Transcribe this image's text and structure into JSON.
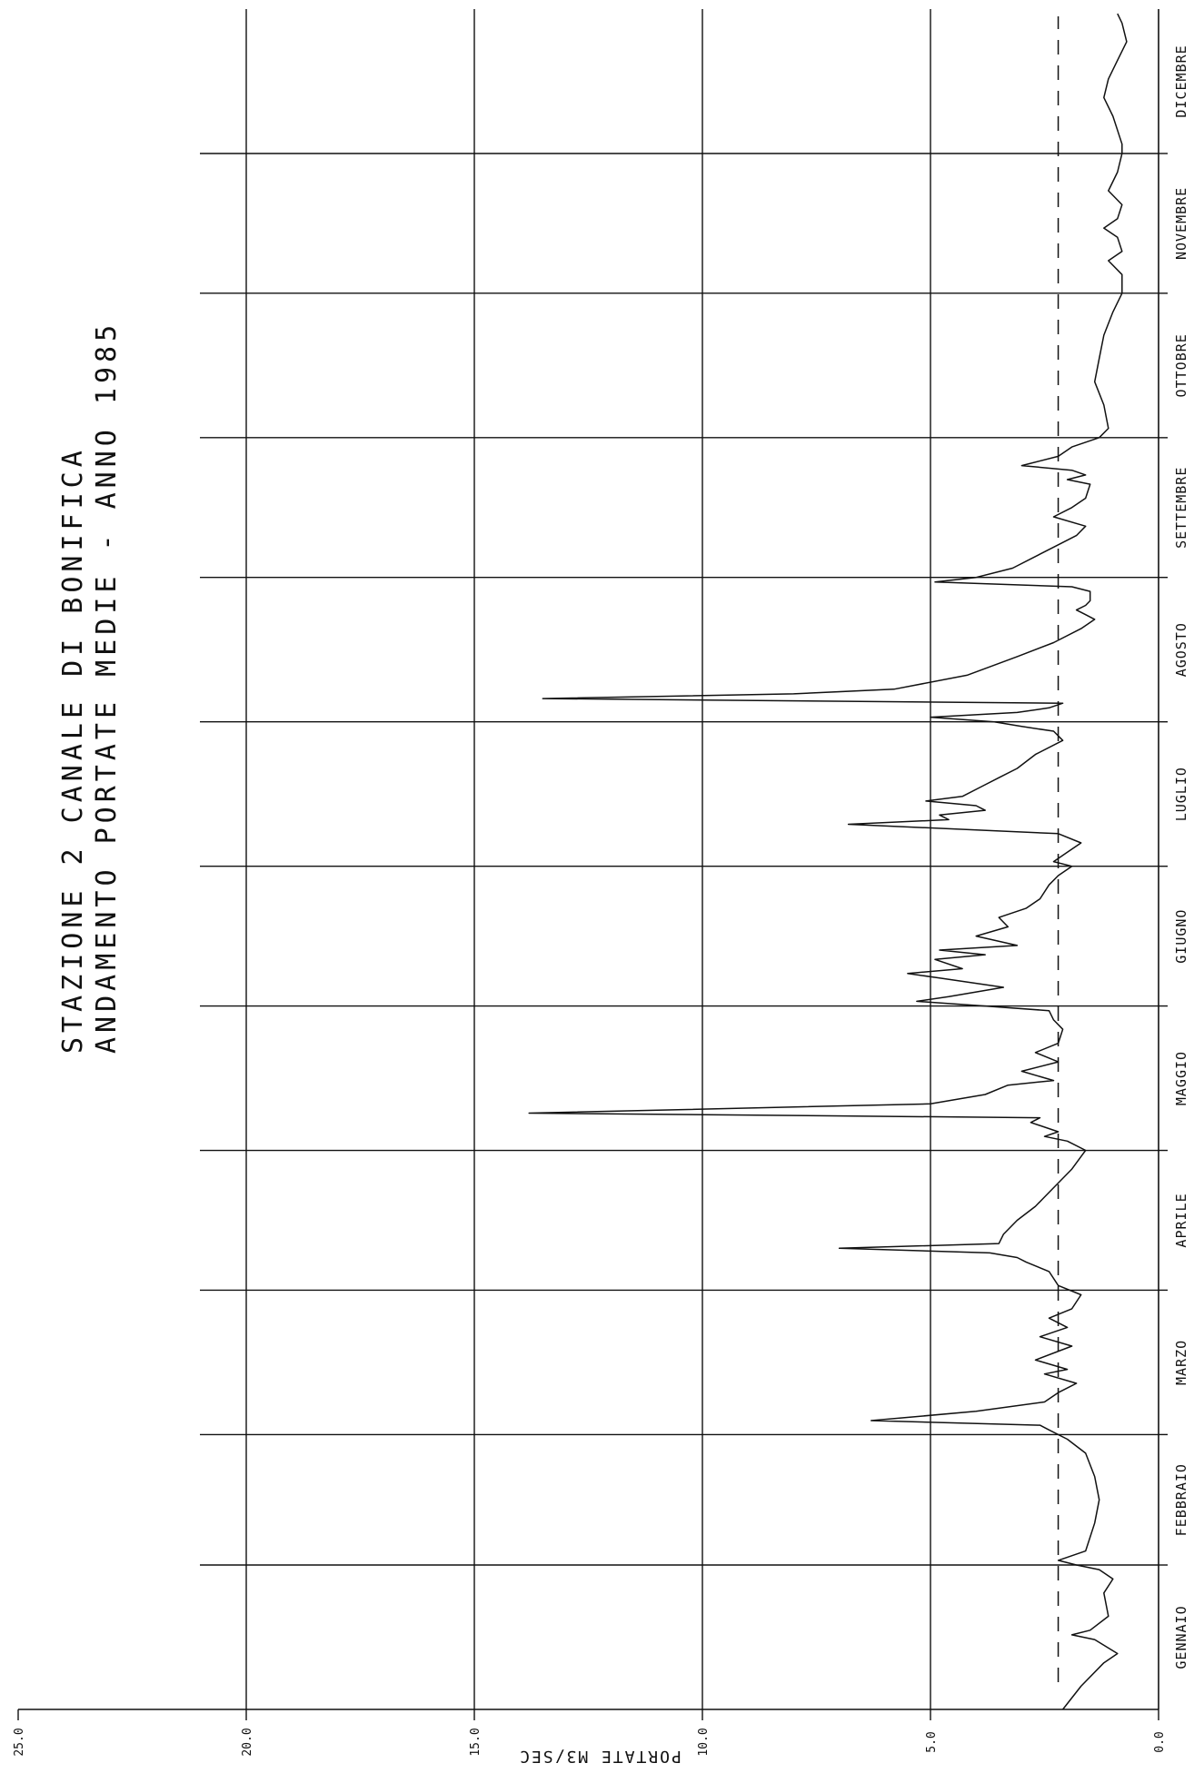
{
  "chart_data": {
    "type": "line",
    "title_line1": "STAZIONE  2   CANALE DI BONIFICA",
    "title_line2": "ANDAMENTO PORTATE MEDIE  - ANNO 1985",
    "ylabel": "PORTATE M3/SEC",
    "ylim": [
      0,
      25
    ],
    "y_ticks": [
      "0.0",
      "5.0",
      "10.0",
      "15.0",
      "20.0",
      "25.0"
    ],
    "categories": [
      "GENNAIO",
      "FEBBRAIO",
      "MARZO",
      "APRILE",
      "MAGGIO",
      "GIUGNO",
      "LUGLIO",
      "AGOSTO",
      "SETTEMBRE",
      "OTTOBRE",
      "NOVEMBRE",
      "DICEMBRE"
    ],
    "grid": true,
    "mean_line": 2.2,
    "series": [
      {
        "values": [
          [
            0,
            2.1
          ],
          [
            5,
            1.7
          ],
          [
            10,
            1.2
          ],
          [
            12,
            0.9
          ],
          [
            15,
            1.4
          ],
          [
            16,
            1.9
          ],
          [
            17,
            1.5
          ],
          [
            20,
            1.1
          ],
          [
            25,
            1.2
          ],
          [
            28,
            1.0
          ],
          [
            30,
            1.3
          ],
          [
            31,
            1.8
          ],
          [
            32,
            2.2
          ],
          [
            34,
            1.6
          ],
          [
            40,
            1.4
          ],
          [
            45,
            1.3
          ],
          [
            50,
            1.4
          ],
          [
            55,
            1.6
          ],
          [
            58,
            2.0
          ],
          [
            60,
            2.4
          ],
          [
            61,
            2.6
          ],
          [
            62,
            6.3
          ],
          [
            64,
            4.0
          ],
          [
            66,
            2.5
          ],
          [
            68,
            2.2
          ],
          [
            70,
            1.8
          ],
          [
            72,
            2.5
          ],
          [
            73,
            2.0
          ],
          [
            75,
            2.7
          ],
          [
            78,
            1.9
          ],
          [
            80,
            2.6
          ],
          [
            82,
            2.0
          ],
          [
            84,
            2.4
          ],
          [
            86,
            1.9
          ],
          [
            89,
            1.7
          ],
          [
            91,
            2.2
          ],
          [
            94,
            2.4
          ],
          [
            96,
            2.9
          ],
          [
            97,
            3.1
          ],
          [
            98,
            3.7
          ],
          [
            99,
            7.0
          ],
          [
            100,
            3.5
          ],
          [
            102,
            3.4
          ],
          [
            105,
            3.1
          ],
          [
            108,
            2.7
          ],
          [
            112,
            2.3
          ],
          [
            116,
            1.9
          ],
          [
            120,
            1.6
          ],
          [
            122,
            2.0
          ],
          [
            123,
            2.5
          ],
          [
            124,
            2.2
          ],
          [
            126,
            2.8
          ],
          [
            127,
            2.6
          ],
          [
            128,
            13.8
          ],
          [
            130,
            5.0
          ],
          [
            132,
            3.8
          ],
          [
            134,
            3.3
          ],
          [
            135,
            2.3
          ],
          [
            137,
            3.0
          ],
          [
            139,
            2.2
          ],
          [
            141,
            2.7
          ],
          [
            143,
            2.2
          ],
          [
            146,
            2.1
          ],
          [
            148,
            2.3
          ],
          [
            150,
            2.4
          ],
          [
            151,
            3.8
          ],
          [
            152,
            5.3
          ],
          [
            153,
            4.6
          ],
          [
            155,
            3.4
          ],
          [
            157,
            4.8
          ],
          [
            158,
            5.5
          ],
          [
            159,
            4.3
          ],
          [
            161,
            4.9
          ],
          [
            162,
            3.8
          ],
          [
            163,
            4.8
          ],
          [
            164,
            3.1
          ],
          [
            166,
            4.0
          ],
          [
            168,
            3.3
          ],
          [
            170,
            3.5
          ],
          [
            172,
            2.9
          ],
          [
            174,
            2.6
          ],
          [
            177,
            2.4
          ],
          [
            179,
            2.2
          ],
          [
            181,
            1.9
          ],
          [
            182,
            2.3
          ],
          [
            184,
            2.0
          ],
          [
            186,
            1.7
          ],
          [
            188,
            2.2
          ],
          [
            190,
            6.8
          ],
          [
            191,
            4.6
          ],
          [
            192,
            4.8
          ],
          [
            193,
            3.8
          ],
          [
            194,
            4.0
          ],
          [
            195,
            5.1
          ],
          [
            196,
            4.3
          ],
          [
            198,
            3.9
          ],
          [
            200,
            3.5
          ],
          [
            202,
            3.1
          ],
          [
            205,
            2.7
          ],
          [
            208,
            2.1
          ],
          [
            210,
            2.3
          ],
          [
            211,
            3.0
          ],
          [
            212,
            3.6
          ],
          [
            213,
            5.0
          ],
          [
            214,
            3.1
          ],
          [
            215,
            2.4
          ],
          [
            216,
            2.1
          ],
          [
            217,
            13.5
          ],
          [
            218,
            8.0
          ],
          [
            219,
            5.8
          ],
          [
            222,
            4.2
          ],
          [
            226,
            3.1
          ],
          [
            229,
            2.3
          ],
          [
            232,
            1.7
          ],
          [
            234,
            1.4
          ],
          [
            235,
            1.6
          ],
          [
            236,
            1.8
          ],
          [
            237,
            1.6
          ],
          [
            238,
            1.5
          ],
          [
            240,
            1.5
          ],
          [
            241,
            1.9
          ],
          [
            242,
            4.9
          ],
          [
            243,
            4.0
          ],
          [
            245,
            3.2
          ],
          [
            248,
            2.6
          ],
          [
            250,
            2.2
          ],
          [
            252,
            1.8
          ],
          [
            254,
            1.6
          ],
          [
            256,
            2.3
          ],
          [
            258,
            1.9
          ],
          [
            260,
            1.6
          ],
          [
            263,
            1.5
          ],
          [
            264,
            2.0
          ],
          [
            265,
            1.6
          ],
          [
            266,
            1.9
          ],
          [
            267,
            3.0
          ],
          [
            269,
            2.2
          ],
          [
            271,
            1.9
          ],
          [
            273,
            1.3
          ],
          [
            275,
            1.1
          ],
          [
            280,
            1.2
          ],
          [
            285,
            1.4
          ],
          [
            290,
            1.3
          ],
          [
            295,
            1.2
          ],
          [
            300,
            1.0
          ],
          [
            304,
            0.8
          ],
          [
            305,
            0.8
          ],
          [
            308,
            0.8
          ],
          [
            311,
            1.1
          ],
          [
            313,
            0.8
          ],
          [
            316,
            0.9
          ],
          [
            318,
            1.2
          ],
          [
            320,
            0.9
          ],
          [
            323,
            0.8
          ],
          [
            326,
            1.1
          ],
          [
            330,
            0.9
          ],
          [
            334,
            0.8
          ],
          [
            336,
            0.8
          ],
          [
            339,
            0.9
          ],
          [
            342,
            1.0
          ],
          [
            346,
            1.2
          ],
          [
            350,
            1.1
          ],
          [
            354,
            0.9
          ],
          [
            358,
            0.7
          ],
          [
            362,
            0.8
          ],
          [
            364,
            0.9
          ]
        ]
      }
    ]
  }
}
